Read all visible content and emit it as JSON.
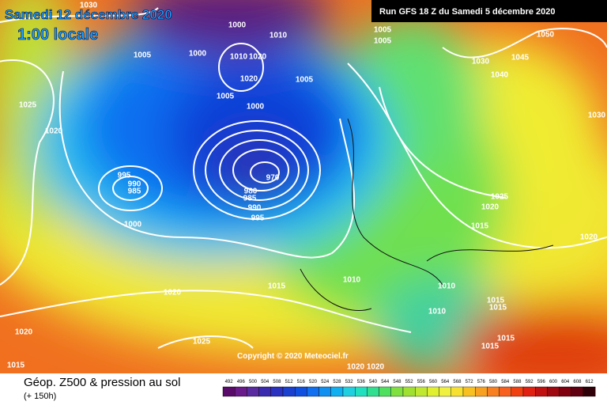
{
  "header": {
    "date": "Samedi 12 décembre 2020",
    "time": "1:00 locale",
    "run": "Run GFS 18 Z du Samedi 5 décembre 2020"
  },
  "copyright": "Copyright © 2020 Meteociel.fr",
  "footer": {
    "title": "Géop. Z500 & pression au sol",
    "lead": "(+ 150h)"
  },
  "legend": {
    "values": [
      492,
      496,
      500,
      504,
      508,
      512,
      516,
      520,
      524,
      528,
      532,
      536,
      540,
      544,
      548,
      552,
      556,
      560,
      564,
      568,
      572,
      576,
      580,
      584,
      588,
      592,
      596,
      600,
      604,
      608,
      612
    ],
    "colors": [
      "#5a0a6a",
      "#6a1a8a",
      "#5a2aa0",
      "#3a2ab0",
      "#2a30c0",
      "#1a40d0",
      "#1050e0",
      "#1070f0",
      "#1090f0",
      "#10b0f0",
      "#20d0e0",
      "#20e0c0",
      "#30e090",
      "#50e060",
      "#80e040",
      "#a0e030",
      "#c0e830",
      "#e0f030",
      "#f0f040",
      "#f8e030",
      "#f8c020",
      "#f8a020",
      "#f88020",
      "#f86020",
      "#f04010",
      "#e02010",
      "#c01010",
      "#a00810",
      "#800010",
      "#600010",
      "#300008"
    ]
  },
  "isobars": [
    "990",
    "1030",
    "1000",
    "1010",
    "1005",
    "1005",
    "1005",
    "1000",
    "1010",
    "1020",
    "1020",
    "1005",
    "1005",
    "1000",
    "970",
    "980",
    "985",
    "990",
    "995",
    "995",
    "990",
    "985",
    "1000",
    "1025",
    "1020",
    "1020",
    "1015",
    "1010",
    "1025",
    "1020",
    "1015",
    "1050",
    "1045",
    "1030",
    "1040",
    "1030",
    "1025",
    "1020",
    "1015",
    "1020",
    "1010",
    "1010",
    "1015",
    "1015",
    "1015",
    "1015",
    "1020",
    "1020"
  ]
}
